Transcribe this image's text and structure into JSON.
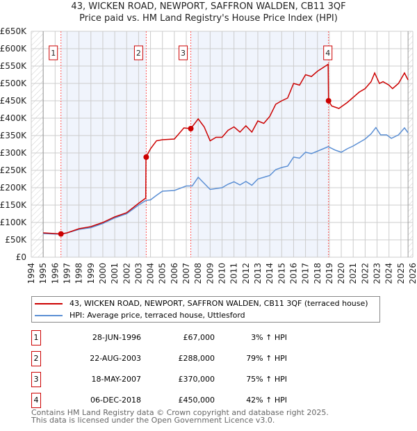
{
  "chart_data": {
    "type": "line",
    "title": "43, WICKEN ROAD, NEWPORT, SAFFRON WALDEN, CB11 3QF",
    "subtitle": "Price paid vs. HM Land Registry's House Price Index (HPI)",
    "xlim": [
      1994,
      2026
    ],
    "ylim": [
      0,
      650
    ],
    "x_ticks": [
      "1994",
      "1995",
      "1996",
      "1997",
      "1998",
      "1999",
      "2000",
      "2001",
      "2002",
      "2003",
      "2004",
      "2005",
      "2006",
      "2007",
      "2008",
      "2009",
      "2010",
      "2011",
      "2012",
      "2013",
      "2014",
      "2015",
      "2016",
      "2017",
      "2018",
      "2019",
      "2020",
      "2021",
      "2022",
      "2023",
      "2024",
      "2025",
      "2026"
    ],
    "y_ticks": [
      "£0",
      "£50K",
      "£100K",
      "£150K",
      "£200K",
      "£250K",
      "£300K",
      "£350K",
      "£400K",
      "£450K",
      "£500K",
      "£550K",
      "£600K",
      "£650K"
    ],
    "grid": true,
    "series": [
      {
        "name": "43, WICKEN ROAD, NEWPORT, SAFFRON WALDEN, CB11 3QF (terraced house)",
        "color": "#cc0000",
        "x": [
          1995,
          1996.5,
          1997,
          1998,
          1999,
          2000,
          2001,
          2002,
          2003,
          2003.6,
          2003.62,
          2004,
          2004.5,
          2005,
          2006,
          2006.8,
          2007.38,
          2008,
          2008.5,
          2009,
          2009.5,
          2010,
          2010.5,
          2011,
          2011.5,
          2012,
          2012.5,
          2013,
          2013.5,
          2014,
          2014.5,
          2015,
          2015.5,
          2016,
          2016.5,
          2017,
          2017.5,
          2018,
          2018.9,
          2018.93,
          2019.2,
          2019.8,
          2020.5,
          2021,
          2021.5,
          2022,
          2022.5,
          2022.8,
          2023.2,
          2023.5,
          2024,
          2024.3,
          2024.8,
          2025.3,
          2025.6
        ],
        "y": [
          70,
          67,
          70,
          82,
          88,
          100,
          116,
          128,
          155,
          170,
          288,
          312,
          335,
          338,
          340,
          372,
          370,
          398,
          375,
          335,
          345,
          345,
          365,
          375,
          360,
          378,
          360,
          392,
          385,
          405,
          440,
          450,
          458,
          500,
          495,
          525,
          520,
          535,
          555,
          450,
          435,
          428,
          445,
          460,
          475,
          485,
          505,
          530,
          500,
          505,
          495,
          485,
          500,
          530,
          510
        ]
      },
      {
        "name": "HPI: Average price, terraced house, Uttlesford",
        "color": "#5b8fd4",
        "x": [
          1995,
          1996.5,
          1997,
          1998,
          1999,
          2000,
          2001,
          2002,
          2003,
          2003.6,
          2004,
          2004.5,
          2005,
          2006,
          2007,
          2007.5,
          2008,
          2009,
          2010,
          2010.5,
          2011,
          2011.5,
          2012,
          2012.5,
          2013,
          2014,
          2014.5,
          2015,
          2015.5,
          2016,
          2016.5,
          2017,
          2017.5,
          2018,
          2018.9,
          2019.5,
          2020,
          2020.5,
          2021,
          2021.5,
          2022,
          2022.5,
          2022.9,
          2023.3,
          2023.8,
          2024.2,
          2024.8,
          2025.3,
          2025.6
        ],
        "y": [
          68,
          66,
          70,
          80,
          85,
          97,
          113,
          125,
          150,
          163,
          165,
          178,
          190,
          192,
          205,
          205,
          230,
          195,
          200,
          210,
          217,
          208,
          218,
          207,
          225,
          235,
          252,
          258,
          262,
          288,
          285,
          302,
          298,
          305,
          318,
          308,
          302,
          312,
          320,
          330,
          340,
          355,
          373,
          352,
          352,
          342,
          352,
          372,
          358
        ]
      }
    ],
    "sales": [
      {
        "label": "1",
        "x": 1996.49,
        "price": 67
      },
      {
        "label": "2",
        "x": 2003.64,
        "price": 288
      },
      {
        "label": "3",
        "x": 2007.38,
        "price": 370
      },
      {
        "label": "4",
        "x": 2018.93,
        "price": 450
      }
    ]
  },
  "legend": {
    "red": "43, WICKEN ROAD, NEWPORT, SAFFRON WALDEN, CB11 3QF (terraced house)",
    "blue": "HPI: Average price, terraced house, Uttlesford"
  },
  "table": [
    {
      "num": "1",
      "date": "28-JUN-1996",
      "price": "£67,000",
      "hpi": "3% ↑ HPI"
    },
    {
      "num": "2",
      "date": "22-AUG-2003",
      "price": "£288,000",
      "hpi": "79% ↑ HPI"
    },
    {
      "num": "3",
      "date": "18-MAY-2007",
      "price": "£370,000",
      "hpi": "75% ↑ HPI"
    },
    {
      "num": "4",
      "date": "06-DEC-2018",
      "price": "£450,000",
      "hpi": "42% ↑ HPI"
    }
  ],
  "footer": {
    "line1": "Contains HM Land Registry data © Crown copyright and database right 2025.",
    "line2": "This data is licensed under the Open Government Licence v3.0."
  }
}
